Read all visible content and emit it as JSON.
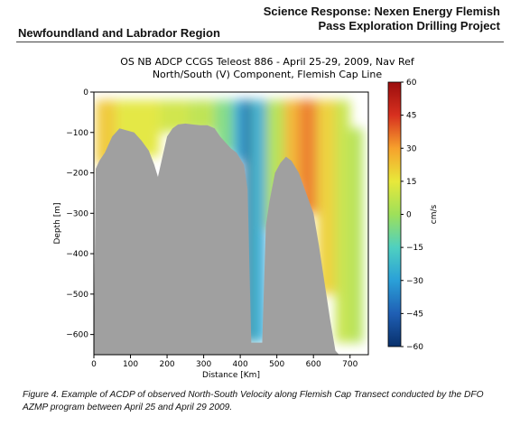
{
  "header": {
    "left": "Newfoundland and Labrador Region",
    "right_line1": "Science Response: Nexen Energy Flemish",
    "right_line2": "Pass Exploration Drilling Project"
  },
  "caption": "Figure 4. Example of ACDP of observed North-South Velocity along Flemish Cap Transect conducted by the DFO AZMP program between April 25 and April 29 2009.",
  "chart_data": {
    "type": "heatmap",
    "title_line1": "OS NB ADCP CCGS Teleost 886 - April 25-29, 2009, Nav Ref",
    "title_line2": "North/South (V) Component, Flemish Cap Line",
    "xlabel": "Distance [Km]",
    "ylabel": "Depth [m]",
    "xlim": [
      0,
      750
    ],
    "ylim": [
      -650,
      0
    ],
    "x_ticks": [
      0,
      100,
      200,
      300,
      400,
      500,
      600,
      700
    ],
    "y_ticks": [
      0,
      -100,
      -200,
      -300,
      -400,
      -500,
      -600
    ],
    "colorbar": {
      "label": "cm/s",
      "range": [
        -60,
        60
      ],
      "ticks": [
        60,
        45,
        30,
        15,
        0,
        -15,
        -30,
        -45,
        -60
      ],
      "colormap": [
        "#08306b",
        "#1f5fb4",
        "#2aa0d8",
        "#4fd0c0",
        "#9ee05a",
        "#e8e83a",
        "#f6a12c",
        "#d7301f",
        "#9b0d0d"
      ]
    },
    "bottom_color": "#a0a0a0",
    "bathymetry": {
      "x": [
        0,
        5,
        15,
        30,
        50,
        70,
        90,
        110,
        130,
        150,
        165,
        175,
        185,
        200,
        215,
        230,
        250,
        270,
        290,
        310,
        330,
        345,
        360,
        375,
        390,
        400,
        410,
        420,
        430,
        445,
        460,
        470,
        480,
        495,
        510,
        525,
        540,
        560,
        580,
        600,
        615,
        630,
        645,
        660,
        670,
        680,
        690,
        700,
        715,
        730,
        750
      ],
      "depth": [
        650,
        190,
        170,
        150,
        110,
        90,
        95,
        100,
        120,
        145,
        180,
        210,
        170,
        110,
        90,
        80,
        78,
        80,
        82,
        82,
        90,
        110,
        125,
        140,
        150,
        165,
        180,
        240,
        620,
        620,
        620,
        330,
        270,
        200,
        175,
        160,
        170,
        200,
        250,
        300,
        380,
        470,
        560,
        640,
        650,
        650,
        650,
        650,
        650,
        650,
        650
      ]
    },
    "velocity_field": [
      {
        "x0": 5,
        "x1": 60,
        "d0": 20,
        "d1": 180,
        "v": 22
      },
      {
        "x0": 60,
        "x1": 180,
        "d0": 20,
        "d1": 160,
        "v": 14
      },
      {
        "x0": 180,
        "x1": 260,
        "d0": 20,
        "d1": 100,
        "v": 10
      },
      {
        "x0": 260,
        "x1": 330,
        "d0": 20,
        "d1": 100,
        "v": 6
      },
      {
        "x0": 330,
        "x1": 380,
        "d0": 20,
        "d1": 150,
        "v": -6
      },
      {
        "x0": 380,
        "x1": 410,
        "d0": 20,
        "d1": 170,
        "v": -28
      },
      {
        "x0": 410,
        "x1": 430,
        "d0": 20,
        "d1": 620,
        "v": -52
      },
      {
        "x0": 430,
        "x1": 445,
        "d0": 20,
        "d1": 620,
        "v": -18
      },
      {
        "x0": 445,
        "x1": 470,
        "d0": 20,
        "d1": 620,
        "v": -30
      },
      {
        "x0": 470,
        "x1": 520,
        "d0": 20,
        "d1": 340,
        "v": 4
      },
      {
        "x0": 520,
        "x1": 560,
        "d0": 20,
        "d1": 230,
        "v": 26
      },
      {
        "x0": 560,
        "x1": 610,
        "d0": 20,
        "d1": 300,
        "v": 35
      },
      {
        "x0": 610,
        "x1": 660,
        "d0": 20,
        "d1": 500,
        "v": 20
      },
      {
        "x0": 660,
        "x1": 700,
        "d0": 20,
        "d1": 620,
        "v": 8
      },
      {
        "x0": 700,
        "x1": 735,
        "d0": 90,
        "d1": 620,
        "v": 4
      }
    ]
  }
}
